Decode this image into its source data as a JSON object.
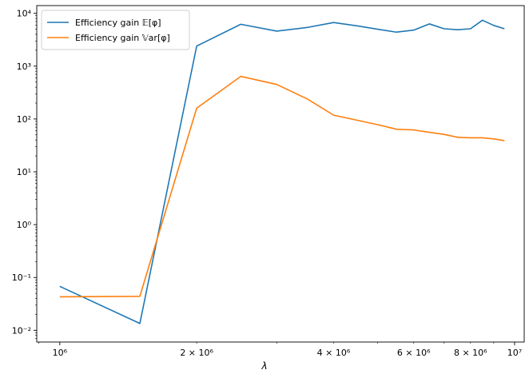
{
  "chart_data": {
    "type": "line",
    "title": "",
    "xlabel": "λ",
    "ylabel": "",
    "xscale": "log",
    "yscale": "log",
    "xlim": [
      890000,
      10500000
    ],
    "ylim": [
      0.006,
      14000
    ],
    "grid": false,
    "legend_position": "top-left",
    "series": [
      {
        "name": "Efficiency gain 𝔼[φ]",
        "color": "#1f77b4",
        "x": [
          1000000,
          1500000,
          2000000,
          2500000,
          3000000,
          3500000,
          4000000,
          4500000,
          5000000,
          5500000,
          6000000,
          6500000,
          7000000,
          7500000,
          8000000,
          8500000,
          9000000,
          9500000
        ],
        "y": [
          0.068,
          0.0135,
          2400,
          6200,
          4600,
          5400,
          6700,
          5800,
          5000,
          4400,
          4800,
          6300,
          5100,
          4900,
          5100,
          7400,
          5900,
          5100
        ]
      },
      {
        "name": "Efficiency gain 𝕍ar[φ]",
        "color": "#ff7f0e",
        "x": [
          1000000,
          1500000,
          2000000,
          2500000,
          3000000,
          3500000,
          4000000,
          4500000,
          5000000,
          5500000,
          6000000,
          6500000,
          7000000,
          7500000,
          8000000,
          8500000,
          9000000,
          9500000
        ],
        "y": [
          0.043,
          0.044,
          160,
          640,
          450,
          240,
          118,
          95,
          78,
          64,
          62,
          56,
          51,
          45,
          44,
          44,
          42,
          39
        ]
      }
    ],
    "x_major_ticks": [
      {
        "value": 1000000,
        "label": "10⁶"
      },
      {
        "value": 10000000,
        "label": "10⁷"
      }
    ],
    "x_minor_labeled_ticks": [
      {
        "value": 2000000,
        "label": "2 × 10⁶"
      },
      {
        "value": 4000000,
        "label": "4 × 10⁶"
      },
      {
        "value": 6000000,
        "label": "6 × 10⁶"
      },
      {
        "value": 8000000,
        "label": "8 × 10⁶"
      }
    ],
    "y_major_ticks": [
      {
        "value": 0.01,
        "label": "10⁻²"
      },
      {
        "value": 0.1,
        "label": "10⁻¹"
      },
      {
        "value": 1,
        "label": "10⁰"
      },
      {
        "value": 10,
        "label": "10¹"
      },
      {
        "value": 100,
        "label": "10²"
      },
      {
        "value": 1000,
        "label": "10³"
      },
      {
        "value": 10000,
        "label": "10⁴"
      }
    ]
  }
}
